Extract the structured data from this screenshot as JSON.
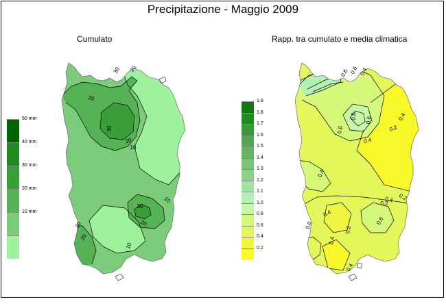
{
  "title": "Precipitazione - Maggio 2009",
  "maps": {
    "left": {
      "subtitle": "Cumulato",
      "legend": [
        {
          "label": "50 mm",
          "color": "#006400"
        },
        {
          "label": "40 mm",
          "color": "#1f8a1f"
        },
        {
          "label": "30 mm",
          "color": "#3a9e3a"
        },
        {
          "label": "20 mm",
          "color": "#55b355"
        },
        {
          "label": "10 mm",
          "color": "#7ccc7c"
        },
        {
          "label": "",
          "color": "#9ef29e"
        }
      ],
      "contour_labels": [
        "30",
        "20",
        "20",
        "30",
        "20",
        "10",
        "10",
        "20",
        "20",
        "30",
        "20",
        "10"
      ]
    },
    "right": {
      "subtitle": "Rapp. tra cumulato e media climatica",
      "legend": [
        {
          "label": "1.9",
          "color": "#117a11"
        },
        {
          "label": "1.8",
          "color": "#238b23"
        },
        {
          "label": "1.7",
          "color": "#3a9a3a"
        },
        {
          "label": "1.6",
          "color": "#4fa84f"
        },
        {
          "label": "1.5",
          "color": "#63b663"
        },
        {
          "label": "1.4",
          "color": "#78c478"
        },
        {
          "label": "1.3",
          "color": "#8cd28c"
        },
        {
          "label": "1.2",
          "color": "#a0e3a0"
        },
        {
          "label": "1.1",
          "color": "#b3f0b3"
        },
        {
          "label": "1.0",
          "color": "#c6f7a8"
        },
        {
          "label": "0.8",
          "color": "#d5f77a"
        },
        {
          "label": "0.6",
          "color": "#e3f75a"
        },
        {
          "label": "0.4",
          "color": "#eef540"
        },
        {
          "label": "0.2",
          "color": "#f7f72a"
        }
      ],
      "contour_labels": [
        "0.6",
        "0.4",
        "0.6",
        "0.8",
        "0.6",
        "0.4",
        "0.2",
        "0.4",
        "0.2",
        "0.4",
        "0.6",
        "0.2",
        "0.4",
        "0.6",
        "0.4",
        "0.4",
        "0.6",
        "0.2",
        "0.4"
      ]
    }
  }
}
